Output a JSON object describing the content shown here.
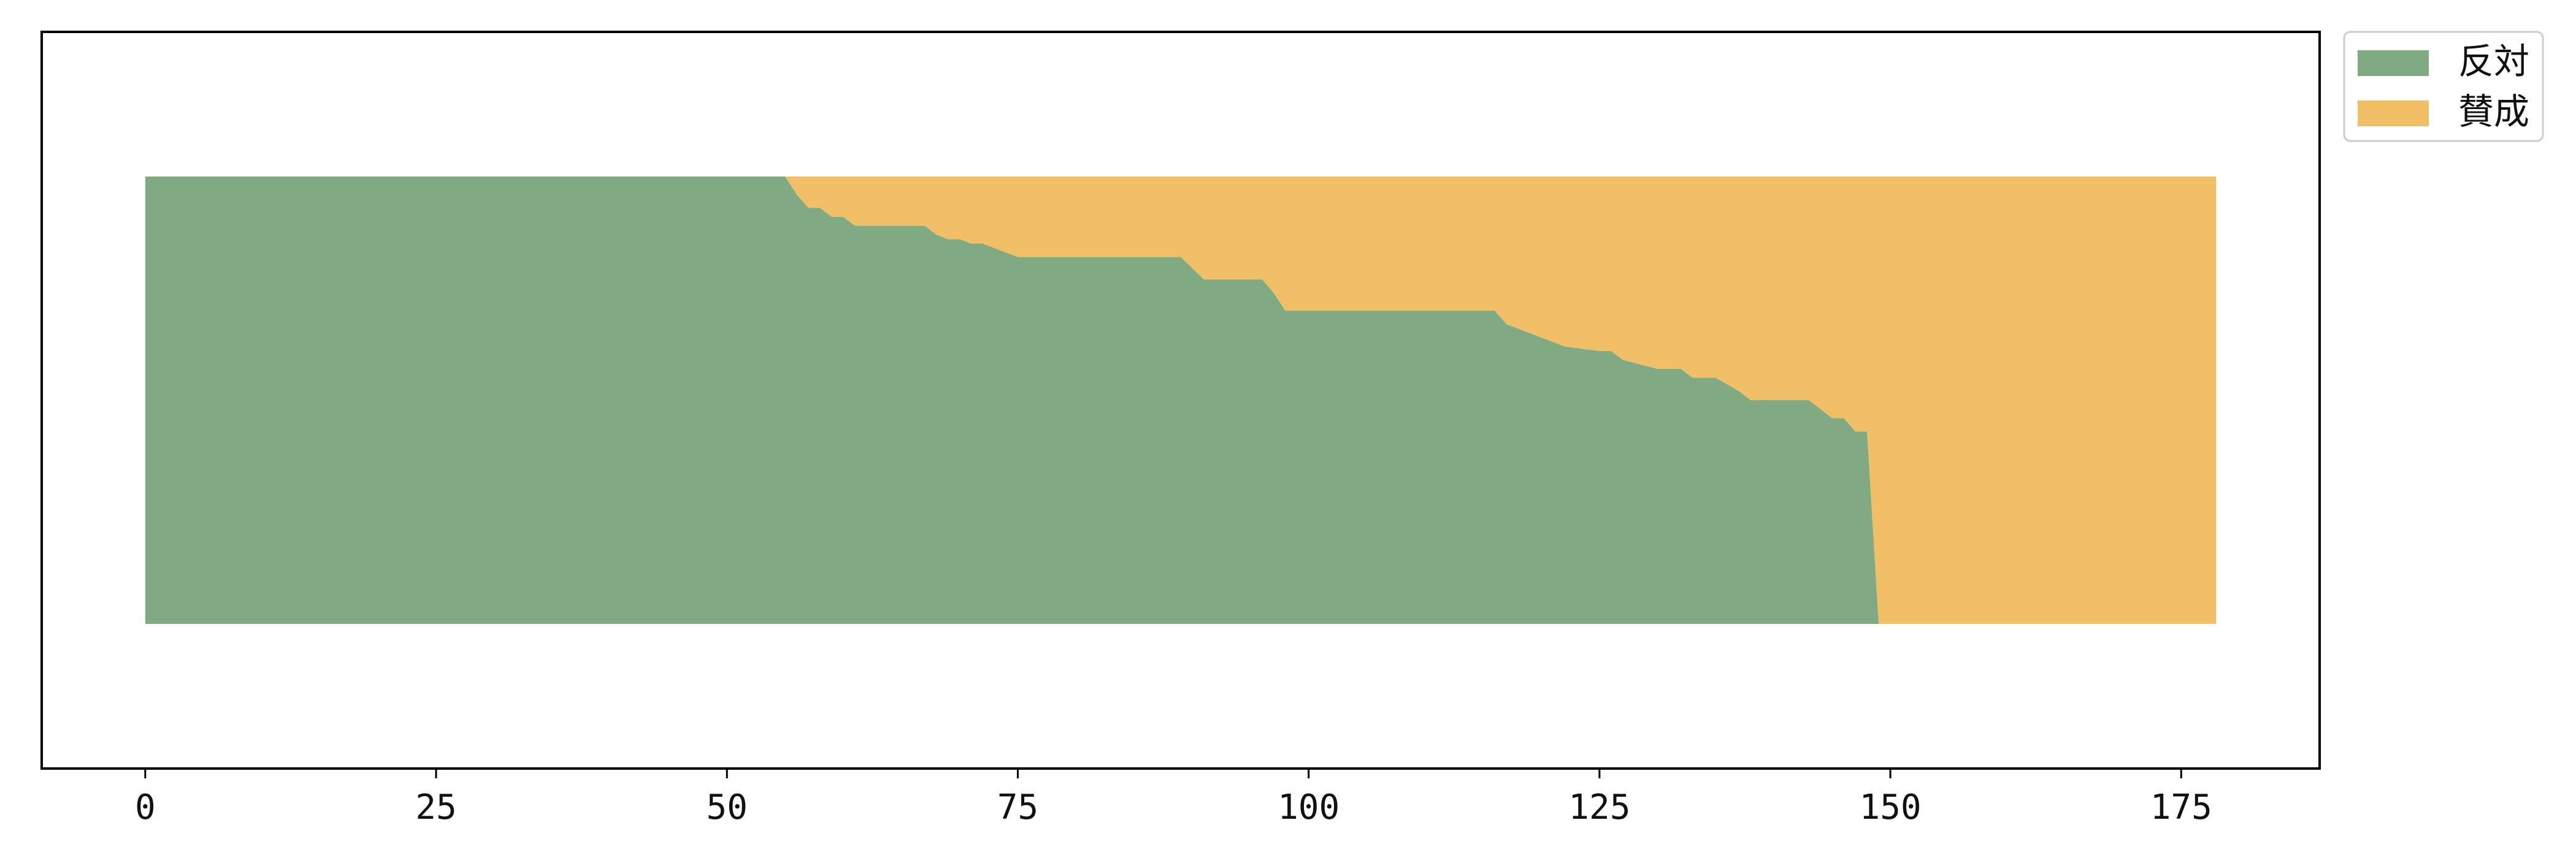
{
  "chart_data": {
    "type": "area",
    "subtype": "streamgraph",
    "baseline": "symmetric",
    "title": "",
    "xlabel": "",
    "ylabel": "",
    "xlim": [
      -8.9,
      186.9
    ],
    "x_ticks": [
      0,
      25,
      50,
      75,
      100,
      125,
      150,
      175
    ],
    "y_ticks_visible": false,
    "grid": false,
    "legend_position": "outside top-right",
    "x": [
      0,
      55,
      56,
      57,
      58,
      59,
      60,
      61,
      62,
      67,
      68,
      69,
      70,
      71,
      72,
      74,
      75,
      89,
      91,
      96,
      97,
      98,
      116,
      117,
      119,
      120,
      122,
      125,
      126,
      127,
      130,
      132,
      133,
      135,
      137,
      138,
      143,
      144,
      145,
      146,
      147,
      148,
      149,
      150,
      178
    ],
    "series": [
      {
        "name": "反対",
        "color": "#82aa82",
        "values": [
          100,
          100,
          96,
          93,
          93,
          91,
          91,
          89,
          89,
          89,
          87,
          86,
          86,
          85,
          85,
          83,
          82,
          82,
          77,
          77,
          74,
          70,
          70,
          67,
          65,
          64,
          62,
          61,
          61,
          59,
          57,
          57,
          55,
          55,
          52,
          50,
          50,
          48,
          46,
          46,
          43,
          43,
          0,
          0,
          0
        ]
      },
      {
        "name": "賛成",
        "color": "#f0bf66",
        "values": [
          0,
          0,
          4,
          7,
          7,
          9,
          9,
          11,
          11,
          11,
          13,
          14,
          14,
          15,
          15,
          17,
          18,
          18,
          23,
          23,
          26,
          30,
          30,
          33,
          35,
          36,
          38,
          39,
          39,
          41,
          43,
          43,
          45,
          45,
          48,
          50,
          50,
          52,
          54,
          54,
          57,
          57,
          100,
          100,
          100
        ]
      }
    ]
  }
}
